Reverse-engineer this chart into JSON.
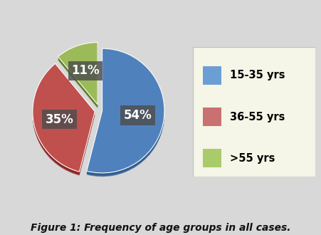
{
  "labels": [
    "15-35 yrs",
    "36-55 yrs",
    ">55 yrs"
  ],
  "values": [
    54,
    35,
    11
  ],
  "colors": [
    "#4F81BD",
    "#C0504D",
    "#9BBB59"
  ],
  "dark_colors": [
    "#2D5A8E",
    "#8B2020",
    "#5A7A1A"
  ],
  "explode": [
    0.04,
    0.08,
    0.1
  ],
  "pct_labels": [
    "54%",
    "35%",
    "11%"
  ],
  "pct_label_color": "white",
  "pct_box_color": "#4D4D4D",
  "pct_fontsize": 12,
  "legend_fontsize": 10.5,
  "caption": "Figure 1: Frequency of age groups in all cases.",
  "caption_fontsize": 10,
  "bg_color": "#D8D8D8",
  "startangle": 90,
  "legend_colors": [
    "#6B9FD4",
    "#C97070",
    "#AACB6A"
  ]
}
